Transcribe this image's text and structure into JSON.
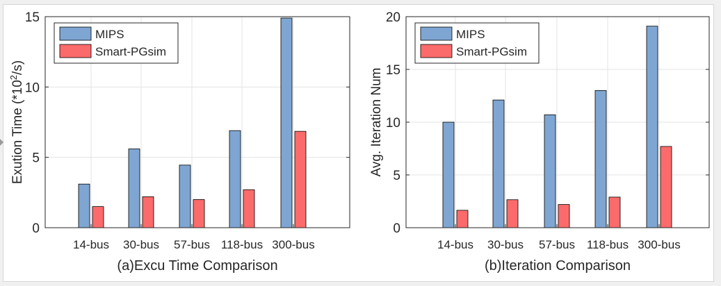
{
  "colors": {
    "mips": "#7fa6d2",
    "smart_pgsim": "#fb6b6b",
    "axis": "#262626",
    "grid": "#e3e3e3",
    "background": "#ffffff"
  },
  "chart_data": [
    {
      "type": "bar",
      "title": "(a)Excu Time Comparison",
      "xlabel": "(a)Excu Time Comparison",
      "ylabel": "Exution Time (*10",
      "ylabel_sup": "2",
      "ylabel_suffix": "/s)",
      "categories": [
        "14-bus",
        "30-bus",
        "57-bus",
        "118-bus",
        "300-bus"
      ],
      "series": [
        {
          "name": "MIPS",
          "values": [
            3.1,
            5.6,
            4.45,
            6.9,
            14.9
          ]
        },
        {
          "name": "Smart-PGsim",
          "values": [
            1.5,
            2.2,
            2.0,
            2.7,
            6.85
          ]
        }
      ],
      "ylim": [
        0,
        15
      ],
      "yticks": [
        "0",
        "5",
        "10",
        "15"
      ],
      "grid": true,
      "legend": "top-left"
    },
    {
      "type": "bar",
      "title": "(b)Iteration Comparison",
      "xlabel": "(b)Iteration Comparison",
      "ylabel": "Avg. Iteration Num",
      "categories": [
        "14-bus",
        "30-bus",
        "57-bus",
        "118-bus",
        "300-bus"
      ],
      "series": [
        {
          "name": "MIPS",
          "values": [
            10,
            12.1,
            10.7,
            13,
            19.1
          ]
        },
        {
          "name": "Smart-PGsim",
          "values": [
            1.65,
            2.65,
            2.2,
            2.9,
            7.7
          ]
        }
      ],
      "ylim": [
        0,
        20
      ],
      "yticks": [
        "0",
        "5",
        "10",
        "15",
        "20"
      ],
      "grid": true,
      "legend": "top-left"
    }
  ]
}
